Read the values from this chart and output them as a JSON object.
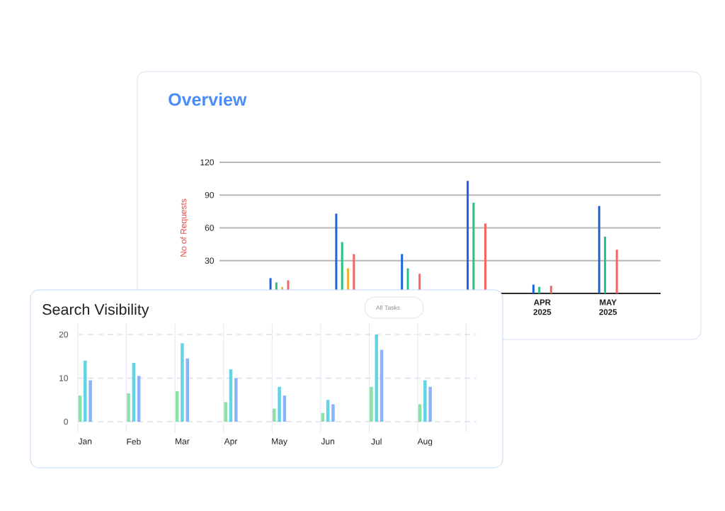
{
  "chart_data": [
    {
      "type": "bar",
      "title": "Overview",
      "ylabel": "No of Requests",
      "categories": [
        null,
        null,
        null,
        null,
        "APR 2025",
        "MAY 2025"
      ],
      "series": [
        {
          "color": "#1e63d8",
          "values": [
            14,
            73,
            36,
            103,
            8,
            80
          ]
        },
        {
          "color": "#27c281",
          "values": [
            10,
            47,
            23,
            83,
            6,
            52
          ]
        },
        {
          "color": "#f2b233",
          "values": [
            6,
            23,
            null,
            null,
            null,
            null
          ]
        },
        {
          "color": "#f96464",
          "values": [
            12,
            36,
            18,
            64,
            7,
            40
          ]
        }
      ],
      "ylim": [
        0,
        120
      ],
      "yticks": [
        30,
        60,
        90,
        120
      ],
      "grid": "y"
    },
    {
      "type": "bar",
      "title": "Search Visibility",
      "categories": [
        "Jan",
        "Feb",
        "Mar",
        "Apr",
        "May",
        "Jun",
        "Jul",
        "Aug"
      ],
      "series": [
        {
          "color": "#88e3a8",
          "values": [
            6,
            6.5,
            7,
            4.5,
            3,
            2,
            8,
            4
          ]
        },
        {
          "color": "#63d4e4",
          "values": [
            14,
            13.5,
            18,
            12,
            8,
            5,
            20,
            9.5
          ]
        },
        {
          "color": "#8ab4fa",
          "values": [
            9.5,
            10.5,
            14.5,
            10,
            6,
            4,
            16.5,
            8
          ]
        }
      ],
      "ylim": [
        0,
        20
      ],
      "yticks": [
        0,
        10,
        20
      ],
      "grid": true,
      "annotations": [
        "All Tasks"
      ]
    }
  ]
}
